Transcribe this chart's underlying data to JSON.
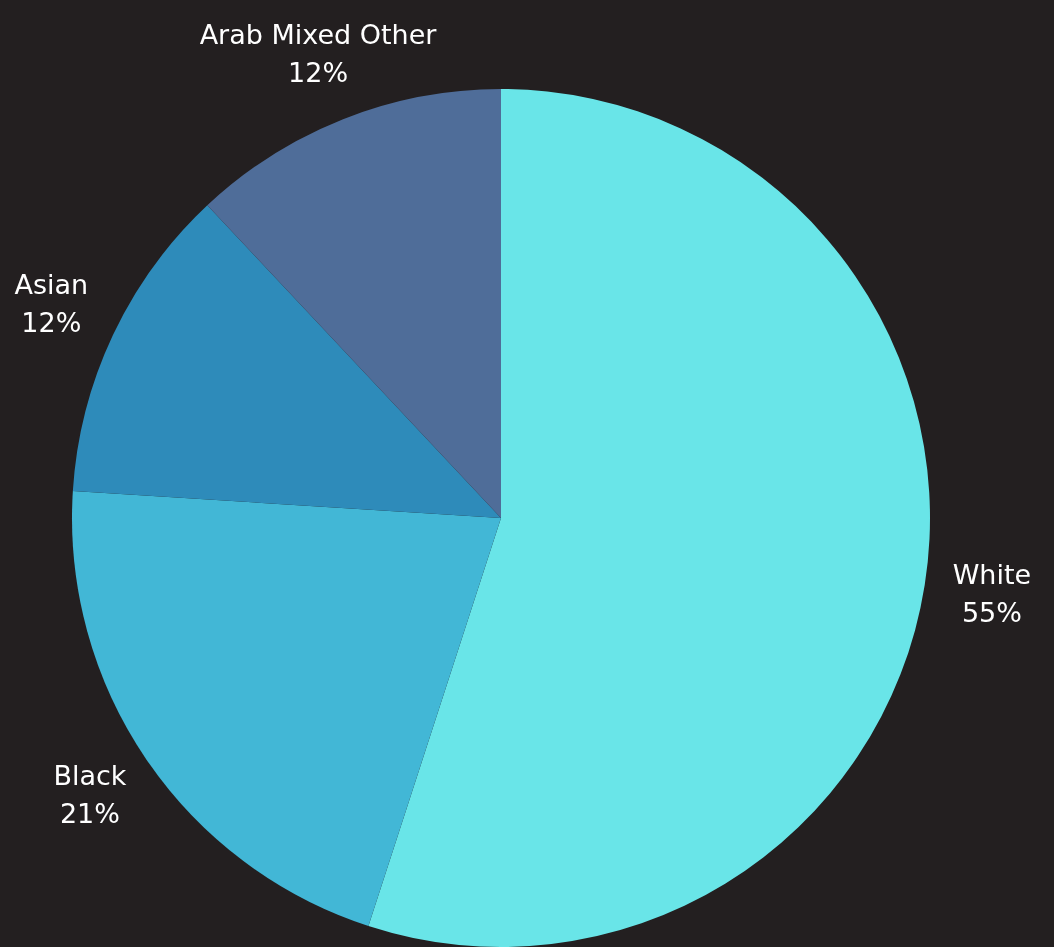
{
  "chart_data": {
    "type": "pie",
    "categories": [
      "White",
      "Black",
      "Asian",
      "Arab Mixed Other"
    ],
    "values": [
      55,
      21,
      12,
      12
    ],
    "colors": [
      "#69e5e8",
      "#42b7d6",
      "#2e8bba",
      "#4f6d99"
    ],
    "value_labels": [
      "55%",
      "21%",
      "12%",
      "12%"
    ],
    "legend": false
  }
}
